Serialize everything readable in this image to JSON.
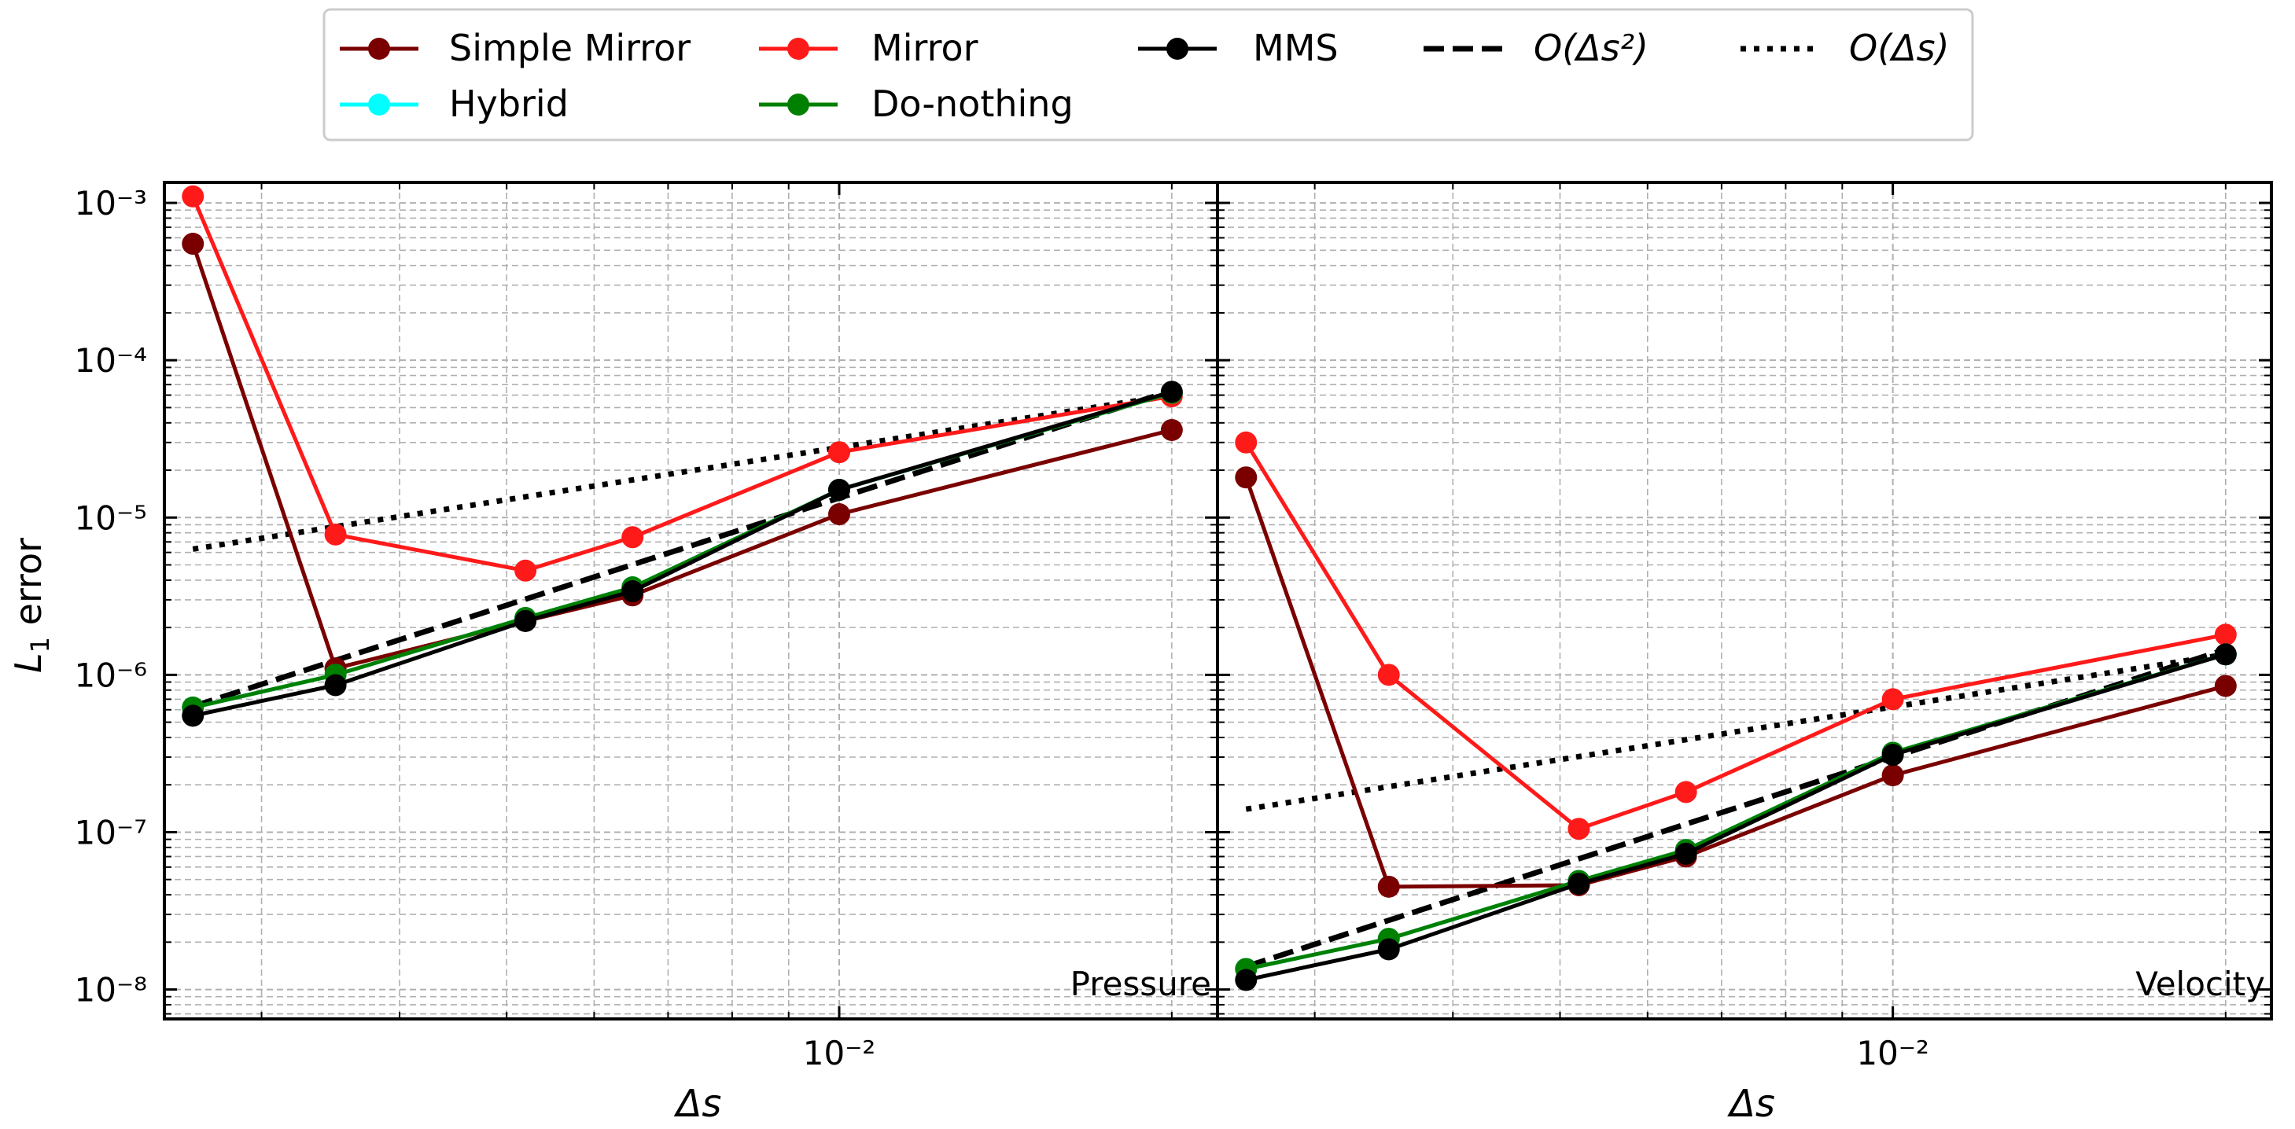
{
  "legend": {
    "entries": [
      {
        "label": "Simple Mirror",
        "color": "#7a0000",
        "style": "marker-line"
      },
      {
        "label": "Mirror",
        "color": "#ff1a1a",
        "style": "marker-line"
      },
      {
        "label": "MMS",
        "color": "#000000",
        "style": "marker-line"
      },
      {
        "label": "O(Δs²)",
        "color": "#000000",
        "style": "dashed"
      },
      {
        "label": "O(Δs)",
        "color": "#000000",
        "style": "dotted"
      },
      {
        "label": "Hybrid",
        "color": "#00ffff",
        "style": "marker-line"
      },
      {
        "label": "Do-nothing",
        "color": "#008000",
        "style": "marker-line"
      }
    ]
  },
  "chart_data": [
    {
      "type": "line",
      "panel_label": "Pressure",
      "xscale": "log",
      "yscale": "log",
      "xlabel": "Δs",
      "ylabel": "L1 error",
      "xlim": [
        0.00245,
        0.022
      ],
      "ylim": [
        6.5e-09,
        0.00135
      ],
      "x_tick_labels": [
        "10⁻²"
      ],
      "y_tick_labels": [
        "10⁻⁸",
        "10⁻⁷",
        "10⁻⁶",
        "10⁻⁵",
        "10⁻⁴",
        "10⁻³"
      ],
      "grid": true,
      "series": [
        {
          "name": "Simple Mirror",
          "color": "#7a0000",
          "x": [
            0.0026,
            0.0035,
            0.0052,
            0.0065,
            0.01,
            0.02
          ],
          "y": [
            0.00055,
            1.1e-06,
            2.2e-06,
            3.2e-06,
            1.05e-05,
            3.6e-05
          ]
        },
        {
          "name": "Mirror",
          "color": "#ff1a1a",
          "x": [
            0.0026,
            0.0035,
            0.0052,
            0.0065,
            0.01,
            0.02
          ],
          "y": [
            0.0011,
            7.8e-06,
            4.6e-06,
            7.5e-06,
            2.6e-05,
            5.9e-05
          ]
        },
        {
          "name": "Hybrid",
          "color": "#00ffff",
          "x": [
            0.0026,
            0.0035,
            0.0052,
            0.0065,
            0.01,
            0.02
          ],
          "y": [
            6.2e-07,
            1e-06,
            2.3e-06,
            3.6e-06,
            1.5e-05,
            6.2e-05
          ]
        },
        {
          "name": "Do-nothing",
          "color": "#008000",
          "x": [
            0.0026,
            0.0035,
            0.0052,
            0.0065,
            0.01,
            0.02
          ],
          "y": [
            6.2e-07,
            1e-06,
            2.3e-06,
            3.6e-06,
            1.5e-05,
            6.2e-05
          ]
        },
        {
          "name": "MMS",
          "color": "#000000",
          "x": [
            0.0026,
            0.0035,
            0.0052,
            0.0065,
            0.01,
            0.02
          ],
          "y": [
            5.5e-07,
            8.6e-07,
            2.2e-06,
            3.4e-06,
            1.5e-05,
            6.3e-05
          ]
        }
      ],
      "reference_lines": [
        {
          "name": "O(Δs²)",
          "style": "dashed",
          "x": [
            0.0026,
            0.02
          ],
          "y": [
            6.3e-07,
            6.4e-05
          ]
        },
        {
          "name": "O(Δs)",
          "style": "dotted",
          "x": [
            0.0026,
            0.02
          ],
          "y": [
            6.3e-06,
            6e-05
          ]
        }
      ]
    },
    {
      "type": "line",
      "panel_label": "Velocity",
      "xscale": "log",
      "yscale": "log",
      "xlabel": "Δs",
      "ylabel": "",
      "xlim": [
        0.00245,
        0.022
      ],
      "ylim": [
        6.5e-09,
        0.00135
      ],
      "x_tick_labels": [
        "10⁻²"
      ],
      "grid": true,
      "series": [
        {
          "name": "Simple Mirror",
          "color": "#7a0000",
          "x": [
            0.0026,
            0.0035,
            0.0052,
            0.0065,
            0.01,
            0.02
          ],
          "y": [
            1.8e-05,
            4.5e-08,
            4.6e-08,
            7e-08,
            2.3e-07,
            8.5e-07
          ]
        },
        {
          "name": "Mirror",
          "color": "#ff1a1a",
          "x": [
            0.0026,
            0.0035,
            0.0052,
            0.0065,
            0.01,
            0.02
          ],
          "y": [
            3e-05,
            1e-06,
            1.05e-07,
            1.8e-07,
            7e-07,
            1.8e-06
          ]
        },
        {
          "name": "Hybrid",
          "color": "#00ffff",
          "x": [
            0.0026,
            0.0035,
            0.0052,
            0.0065,
            0.01,
            0.02
          ],
          "y": [
            1.35e-08,
            2.1e-08,
            4.9e-08,
            7.7e-08,
            3.2e-07,
            1.35e-06
          ]
        },
        {
          "name": "Do-nothing",
          "color": "#008000",
          "x": [
            0.0026,
            0.0035,
            0.0052,
            0.0065,
            0.01,
            0.02
          ],
          "y": [
            1.35e-08,
            2.1e-08,
            4.9e-08,
            7.7e-08,
            3.2e-07,
            1.35e-06
          ]
        },
        {
          "name": "MMS",
          "color": "#000000",
          "x": [
            0.0026,
            0.0035,
            0.0052,
            0.0065,
            0.01,
            0.02
          ],
          "y": [
            1.15e-08,
            1.8e-08,
            4.7e-08,
            7.3e-08,
            3.1e-07,
            1.35e-06
          ]
        }
      ],
      "reference_lines": [
        {
          "name": "O(Δs²)",
          "style": "dashed",
          "x": [
            0.0026,
            0.02
          ],
          "y": [
            1.4e-08,
            1.45e-06
          ]
        },
        {
          "name": "O(Δs)",
          "style": "dotted",
          "x": [
            0.0026,
            0.02
          ],
          "y": [
            1.4e-07,
            1.35e-06
          ]
        }
      ]
    }
  ]
}
